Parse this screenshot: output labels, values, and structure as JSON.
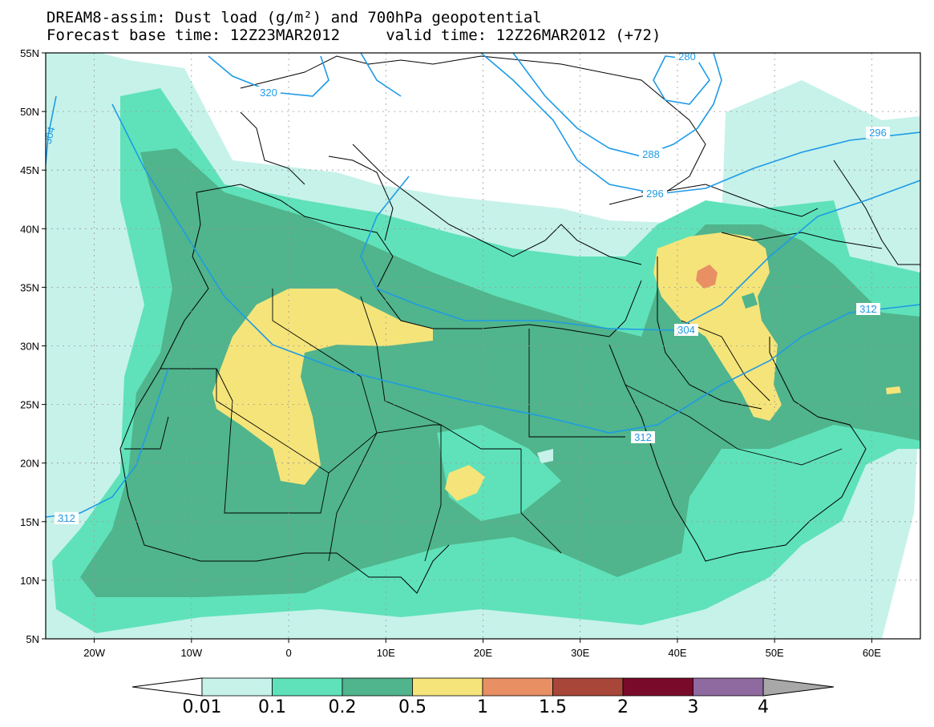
{
  "title": {
    "line1": "DREAM8-assim: Dust load (g/m²) and 700hPa geopotential",
    "line2": "Forecast base time: 12Z23MAR2012     valid time: 12Z26MAR2012 (+72)"
  },
  "map": {
    "lon_range": [
      -25,
      65
    ],
    "lat_range": [
      5,
      55
    ],
    "lat_ticks": [
      "5N",
      "10N",
      "15N",
      "20N",
      "25N",
      "30N",
      "35N",
      "40N",
      "45N",
      "50N",
      "55N"
    ],
    "lon_ticks": [
      "20W",
      "10W",
      "0",
      "10E",
      "20E",
      "30E",
      "40E",
      "50E",
      "60E"
    ],
    "contour_labels": [
      "280",
      "288",
      "296",
      "296",
      "304",
      "304",
      "312",
      "312",
      "312",
      "320"
    ]
  },
  "colorbar": {
    "labels": [
      "0.01",
      "0.1",
      "0.2",
      "0.5",
      "1",
      "1.5",
      "2",
      "3",
      "4"
    ],
    "colors": [
      "#c6f2ea",
      "#5fe2b9",
      "#50b48c",
      "#f5e47a",
      "#e88f64",
      "#a8463a",
      "#7a0a2a",
      "#8e6aa0"
    ],
    "low_color": "#ffffff",
    "high_color": "#a8a8a8"
  },
  "palette": {
    "land_bg": "#ffffff",
    "contour": "#1e9be6",
    "border": "#000000"
  }
}
